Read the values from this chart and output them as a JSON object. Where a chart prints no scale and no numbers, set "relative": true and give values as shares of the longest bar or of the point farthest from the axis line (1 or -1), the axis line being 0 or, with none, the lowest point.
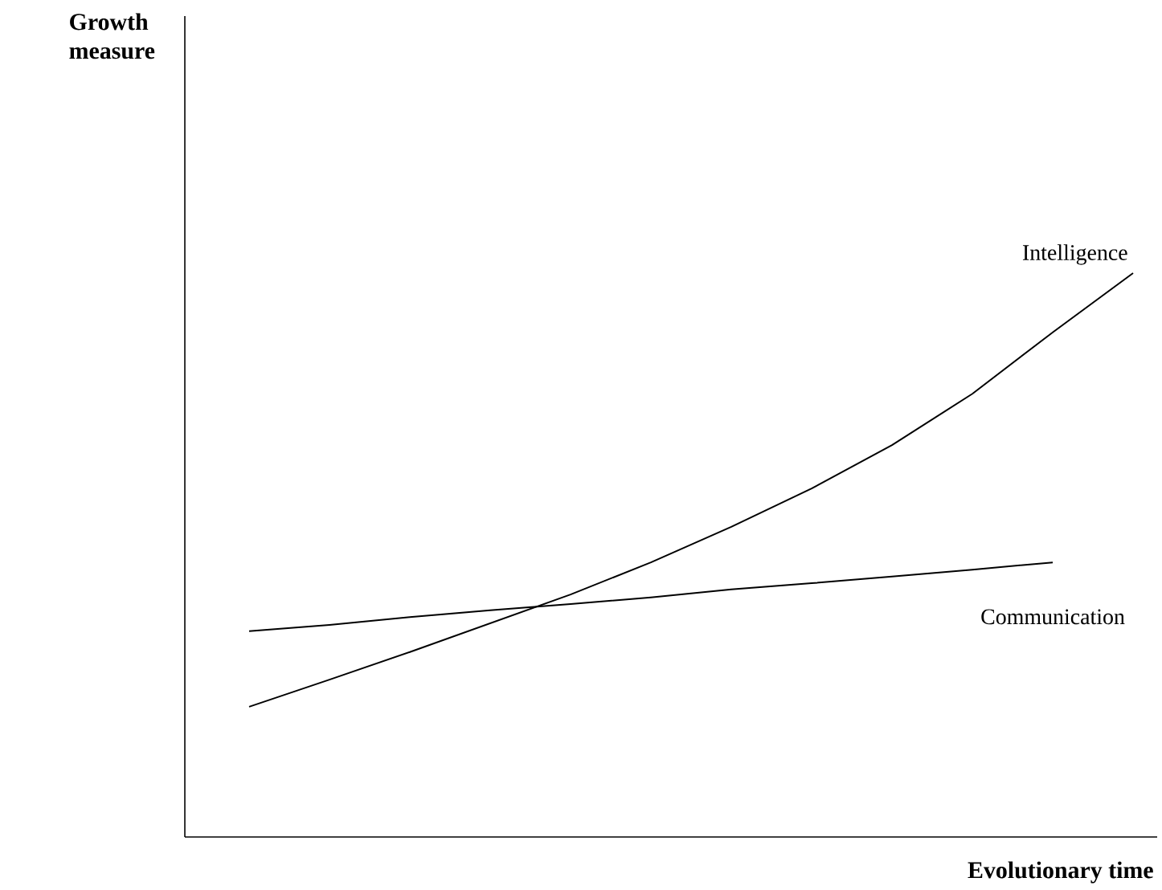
{
  "chart_data": {
    "type": "line",
    "relative": true,
    "xlabel": "Evolutionary time",
    "annotations": [
      "Growth measure"
    ],
    "categories": [
      null,
      null,
      null,
      null,
      null,
      null,
      null,
      null,
      null,
      null,
      null,
      null
    ],
    "series": [
      {
        "name": "Intelligence",
        "color": "#000000",
        "values": [
          0.231,
          0.279,
          0.328,
          0.379,
          0.43,
          0.487,
          0.55,
          0.618,
          0.695,
          0.786,
          0.895,
          1
        ]
      },
      {
        "name": "Communication",
        "color": "#000000",
        "values": [
          0.365,
          0.376,
          0.39,
          0.402,
          0.413,
          0.425,
          0.439,
          0.45,
          0.462,
          0.474,
          0.487,
          null
        ]
      }
    ]
  }
}
